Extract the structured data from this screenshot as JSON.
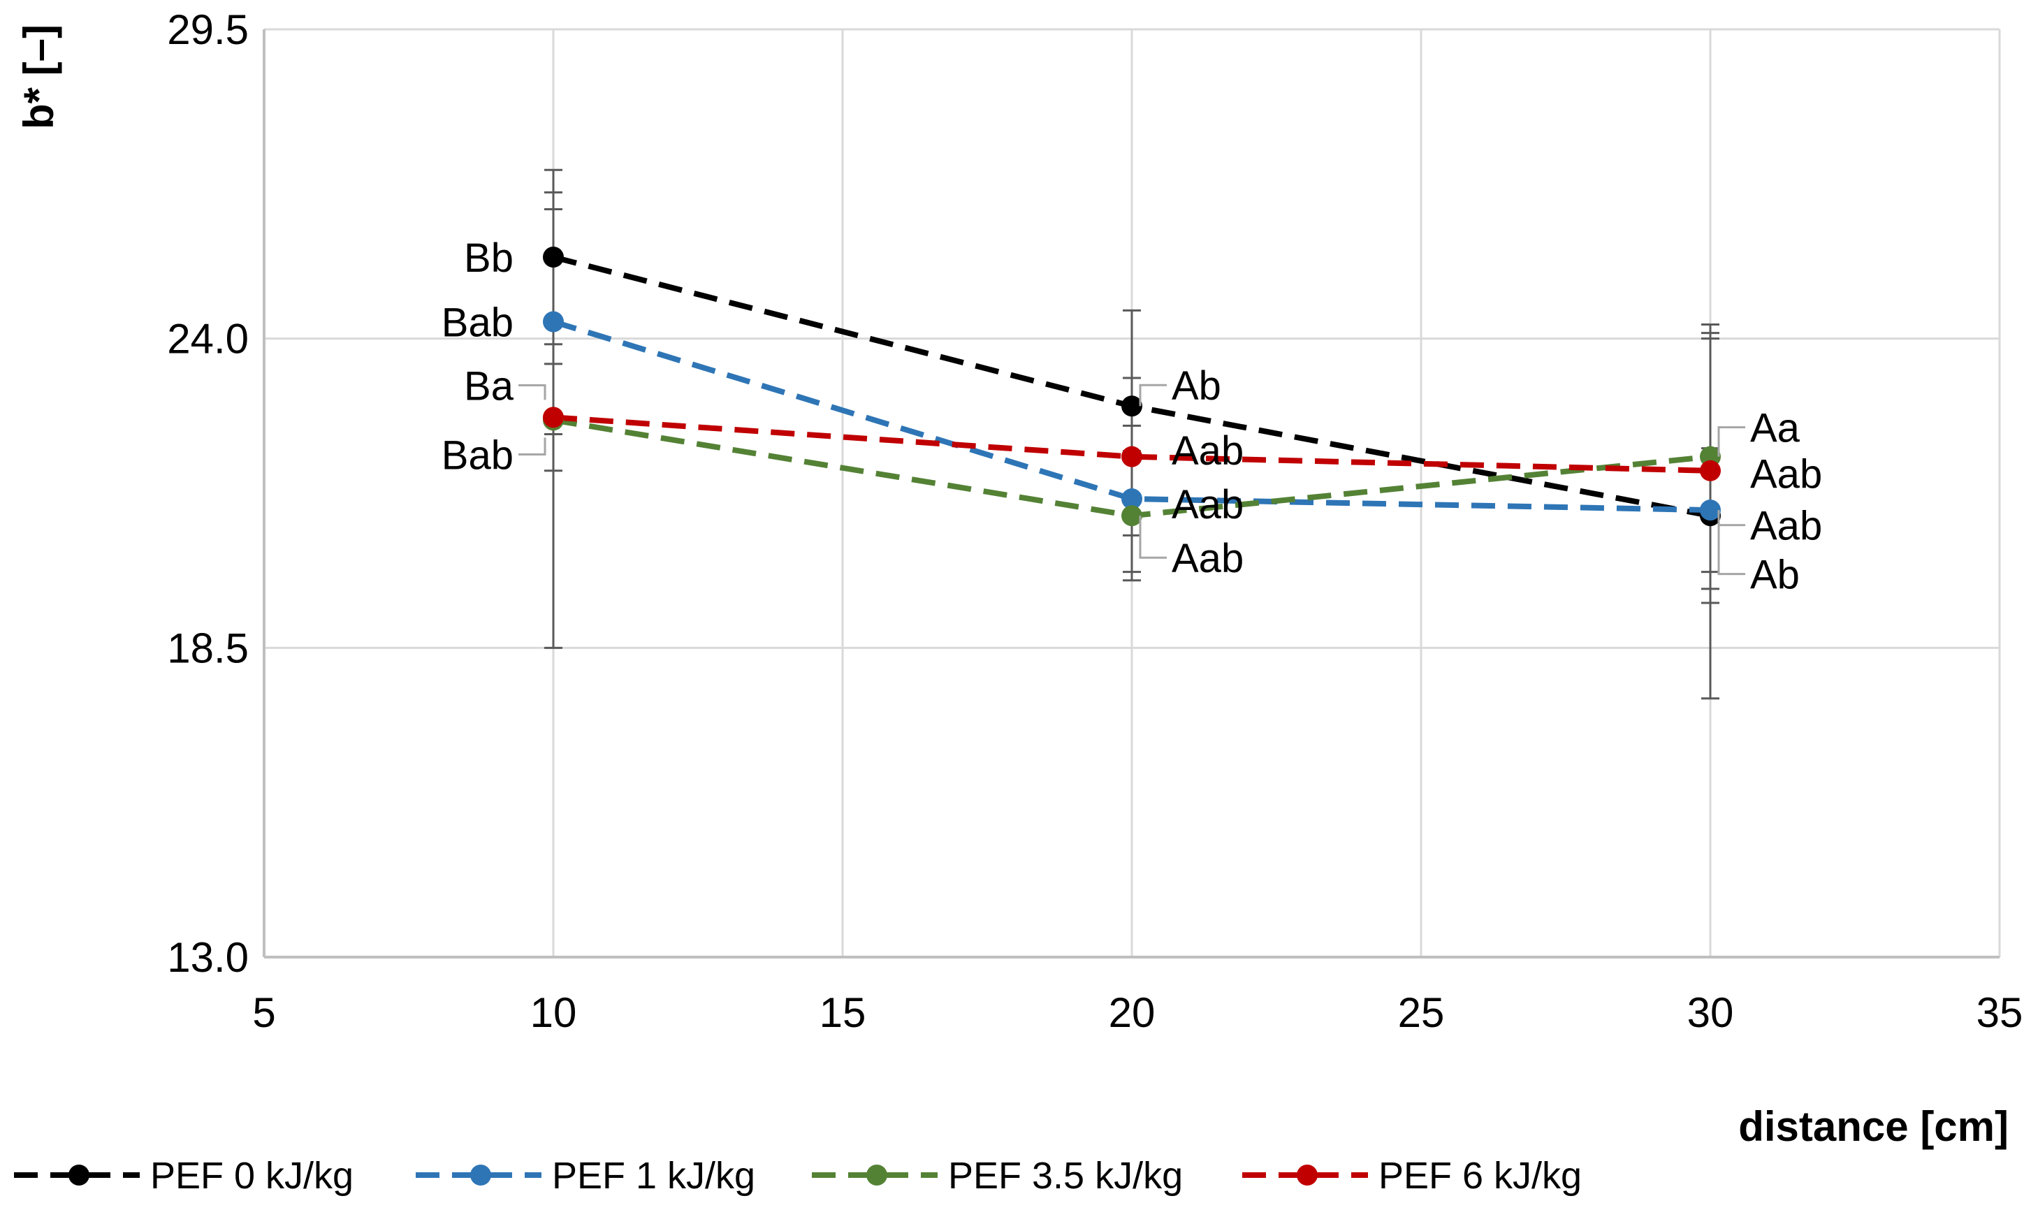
{
  "chart_data": {
    "type": "line",
    "title": "",
    "xlabel": "distance [cm]",
    "ylabel": "b* [–]",
    "xlim": [
      5,
      35
    ],
    "ylim": [
      13.0,
      29.5
    ],
    "x_ticks": [
      "5",
      "10",
      "15",
      "20",
      "25",
      "30",
      "35"
    ],
    "x_tick_values": [
      5,
      10,
      15,
      20,
      25,
      30,
      35
    ],
    "y_ticks": [
      "13.0",
      "18.5",
      "24.0",
      "29.5"
    ],
    "y_tick_values": [
      13.0,
      18.5,
      24.0,
      29.5
    ],
    "grid": true,
    "legend_position": "bottom",
    "x": [
      10,
      20,
      30
    ],
    "series": [
      {
        "name": "PEF 0 kJ/kg",
        "color": "#000000",
        "values": [
          25.45,
          22.8,
          20.85
        ],
        "error": [
          1.55,
          1.7,
          3.25
        ],
        "labels": [
          "Bb",
          "Ab",
          "Ab"
        ]
      },
      {
        "name": "PEF 1 kJ/kg",
        "color": "#2e75b6",
        "values": [
          24.3,
          21.15,
          20.95
        ],
        "error": [
          2.0,
          1.3,
          1.1
        ],
        "labels": [
          "Bab",
          "Aab",
          "Aab"
        ]
      },
      {
        "name": "PEF 3.5 kJ/kg",
        "color": "#548235",
        "values": [
          22.55,
          20.85,
          21.9
        ],
        "error": [
          4.05,
          1.15,
          2.35
        ],
        "labels": [
          "Bab",
          "Aab",
          "Aa"
        ]
      },
      {
        "name": "PEF 6 kJ/kg",
        "color": "#c00000",
        "values": [
          22.6,
          21.9,
          21.65
        ],
        "error": [
          0.95,
          1.4,
          2.35
        ],
        "labels": [
          "Ba",
          "Aab",
          "Aab"
        ]
      }
    ]
  }
}
